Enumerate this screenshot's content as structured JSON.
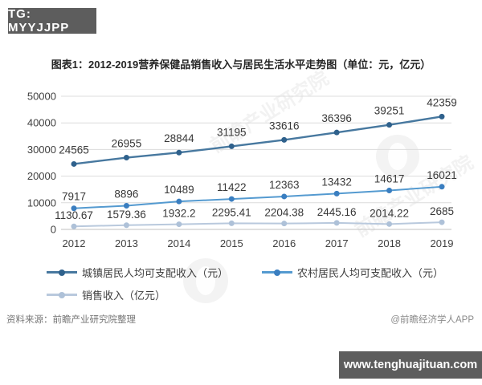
{
  "badges": {
    "top_left": "TG: MYYJJPP",
    "bottom_right": "www.tenghuajituan.com"
  },
  "title": "图表1：2012-2019营养保健品销售收入与居民生活水平走势图（单位：元，亿元）",
  "footer": {
    "source": "资料来源：前瞻产业研究院整理",
    "credit": "@前瞻经济学人APP"
  },
  "watermark": {
    "text": "前瞻产业研究院"
  },
  "chart_data": {
    "type": "line",
    "categories": [
      "2012",
      "2013",
      "2014",
      "2015",
      "2016",
      "2017",
      "2018",
      "2019"
    ],
    "series": [
      {
        "name": "城镇居民人均可支配收入（元）",
        "values": [
          24565,
          26955,
          28844,
          31195,
          33616,
          36396,
          39251,
          42359
        ],
        "color": "#47789f",
        "marker_color": "#2f618c"
      },
      {
        "name": "农村居民人均可支配收入（元）",
        "values": [
          7917,
          8896,
          10489,
          11422,
          12363,
          13432,
          14617,
          16021
        ],
        "color": "#549ad0",
        "marker_color": "#3a7ec0"
      },
      {
        "name": "销售收入（亿元）",
        "values": [
          1130.67,
          1579.36,
          1932.2,
          2295.41,
          2204.38,
          2445.16,
          2014.22,
          2685
        ],
        "color": "#b9c9dd",
        "marker_color": "#aec1d8"
      }
    ],
    "ylim": [
      0,
      50000
    ],
    "ytick_step": 10000,
    "grid": true,
    "legend_position": "bottom",
    "xlabel": "",
    "ylabel": ""
  }
}
